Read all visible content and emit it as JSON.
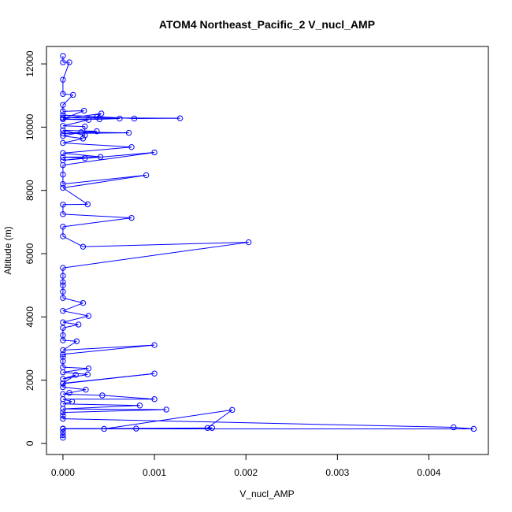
{
  "chart_data": {
    "type": "line",
    "title": "ATOM4 Northeast_Pacific_2 V_nucl_AMP",
    "xlabel": "V_nucl_AMP",
    "ylabel": "Altitude (m)",
    "xlim": [
      -0.00018,
      0.00465
    ],
    "ylim": [
      -350,
      12550
    ],
    "xticks": [
      "0.000",
      "0.001",
      "0.002",
      "0.003",
      "0.004"
    ],
    "yticks": [
      "0",
      "2000",
      "4000",
      "6000",
      "8000",
      "10000",
      "12000"
    ],
    "grid": false,
    "legend": "none",
    "marker": "open-circle",
    "color": "#0000ff",
    "series": [
      {
        "points": [
          [
            0,
            180
          ],
          [
            0,
            260
          ],
          [
            0,
            360
          ],
          [
            0,
            470
          ],
          [
            0.0008,
            470
          ],
          [
            0,
            460
          ],
          [
            0.00163,
            490
          ],
          [
            0.00158,
            490
          ],
          [
            0.00185,
            1060
          ],
          [
            0.00045,
            460
          ],
          [
            0.00449,
            460
          ],
          [
            0.00427,
            510
          ],
          [
            0,
            780
          ],
          [
            0,
            880
          ],
          [
            0,
            980
          ],
          [
            0.00113,
            1070
          ],
          [
            0,
            1090
          ],
          [
            0.00084,
            1200
          ],
          [
            0,
            1250
          ],
          [
            0.0001,
            1320
          ],
          [
            0,
            1400
          ],
          [
            0.001,
            1400
          ],
          [
            0.00043,
            1520
          ],
          [
            0,
            1560
          ],
          [
            7e-05,
            1600
          ],
          [
            0.00025,
            1700
          ],
          [
            0,
            1780
          ],
          [
            0,
            1890
          ],
          [
            0.001,
            2210
          ],
          [
            0,
            1900
          ],
          [
            0.00014,
            2170
          ],
          [
            0,
            2040
          ],
          [
            0.00027,
            2180
          ],
          [
            0,
            2250
          ],
          [
            0.00028,
            2370
          ],
          [
            0,
            2410
          ],
          [
            0,
            2600
          ],
          [
            0,
            2740
          ],
          [
            0,
            2820
          ],
          [
            0.001,
            3110
          ],
          [
            0,
            2950
          ],
          [
            0.00015,
            3230
          ],
          [
            0,
            3260
          ],
          [
            0,
            3420
          ],
          [
            0,
            3650
          ],
          [
            0.00017,
            3760
          ],
          [
            0,
            3830
          ],
          [
            0.00028,
            4030
          ],
          [
            0,
            4190
          ],
          [
            0.00022,
            4440
          ],
          [
            0,
            4600
          ],
          [
            0,
            4800
          ],
          [
            0,
            5000
          ],
          [
            0,
            5100
          ],
          [
            0,
            5300
          ],
          [
            0,
            5550
          ],
          [
            0.00203,
            6360
          ],
          [
            0.00022,
            6220
          ],
          [
            0,
            6550
          ],
          [
            0,
            6850
          ],
          [
            0.00075,
            7130
          ],
          [
            0,
            7250
          ],
          [
            0,
            7550
          ],
          [
            0.00027,
            7560
          ],
          [
            0,
            8080
          ],
          [
            0.00091,
            8480
          ],
          [
            0,
            8200
          ],
          [
            0,
            8500
          ],
          [
            0,
            8800
          ],
          [
            0.001,
            9200
          ],
          [
            0,
            8950
          ],
          [
            0.00024,
            9020
          ],
          [
            0,
            9050
          ],
          [
            0.00041,
            9060
          ],
          [
            0,
            9180
          ],
          [
            0.00075,
            9370
          ],
          [
            0,
            9500
          ],
          [
            0.00022,
            9640
          ],
          [
            0,
            9720
          ],
          [
            0.0002,
            9840
          ],
          [
            0.00072,
            9820
          ],
          [
            0,
            9800
          ],
          [
            0.00037,
            9870
          ],
          [
            0,
            9900
          ],
          [
            0.00024,
            9740
          ],
          [
            0.00024,
            10020
          ],
          [
            0,
            10040
          ],
          [
            0.00028,
            10230
          ],
          [
            0,
            10250
          ],
          [
            0.0004,
            10250
          ],
          [
            0.00062,
            10270
          ],
          [
            0,
            10300
          ],
          [
            0.00128,
            10280
          ],
          [
            0.00078,
            10270
          ],
          [
            0,
            10380
          ],
          [
            0.00037,
            10320
          ],
          [
            0.00042,
            10430
          ],
          [
            0,
            10260
          ],
          [
            0.00023,
            10520
          ],
          [
            0,
            10500
          ],
          [
            0,
            10700
          ],
          [
            0.00011,
            11020
          ],
          [
            0,
            11050
          ],
          [
            0,
            11500
          ],
          [
            7e-05,
            12050
          ],
          [
            0,
            12050
          ],
          [
            0,
            12250
          ]
        ]
      }
    ]
  }
}
